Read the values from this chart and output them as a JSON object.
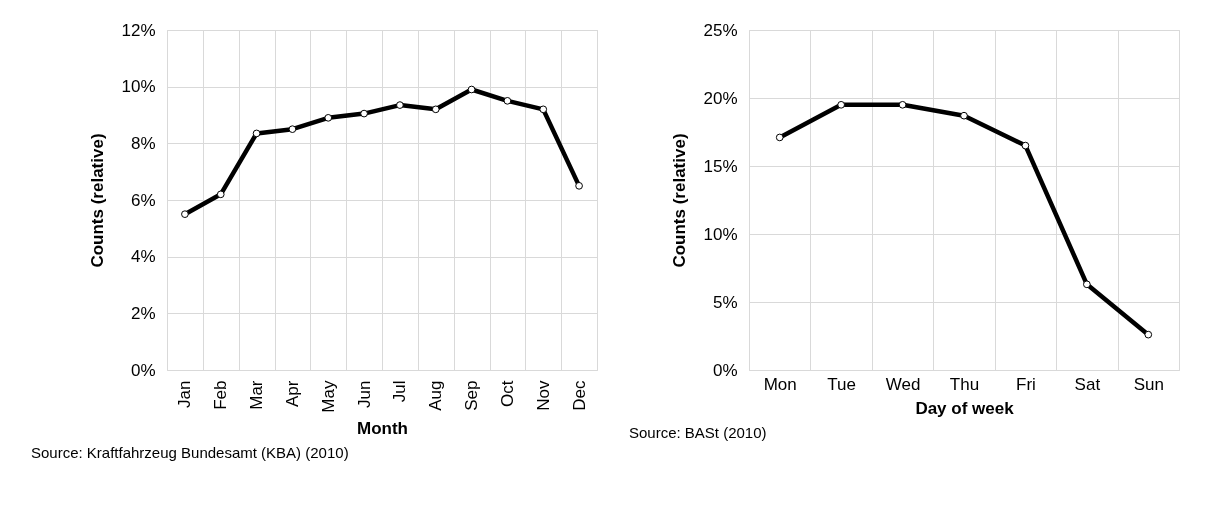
{
  "chart_data": [
    {
      "type": "line",
      "categories": [
        "Jan",
        "Feb",
        "Mar",
        "Apr",
        "May",
        "Jun",
        "Jul",
        "Aug",
        "Sep",
        "Oct",
        "Nov",
        "Dec"
      ],
      "series": [
        {
          "color": "#000000",
          "values": [
            5.5,
            6.2,
            8.35,
            8.5,
            8.9,
            9.05,
            9.35,
            9.2,
            9.9,
            9.5,
            9.2,
            6.5
          ]
        }
      ],
      "xlabel": "Month",
      "ylabel": "Counts (relative)",
      "ylim": [
        0,
        12
      ],
      "yticks": [
        {
          "value": 0,
          "label": "0%"
        },
        {
          "value": 2,
          "label": "2%"
        },
        {
          "value": 4,
          "label": "4%"
        },
        {
          "value": 6,
          "label": "6%"
        },
        {
          "value": 8,
          "label": "8%"
        },
        {
          "value": 10,
          "label": "10%"
        },
        {
          "value": 12,
          "label": "12%"
        }
      ],
      "grid": true,
      "marker": "circle",
      "annotations": [
        "Source: Kraftfahrzeug Bundesamt (KBA) (2010)"
      ]
    },
    {
      "type": "line",
      "categories": [
        "Mon",
        "Tue",
        "Wed",
        "Thu",
        "Fri",
        "Sat",
        "Sun"
      ],
      "series": [
        {
          "color": "#000000",
          "values": [
            17.1,
            19.5,
            19.5,
            18.7,
            16.5,
            6.3,
            2.6
          ]
        }
      ],
      "xlabel": "Day of week",
      "ylabel": "Counts (relative)",
      "ylim": [
        0,
        25
      ],
      "yticks": [
        {
          "value": 0,
          "label": "0%"
        },
        {
          "value": 5,
          "label": "5%"
        },
        {
          "value": 10,
          "label": "10%"
        },
        {
          "value": 15,
          "label": "15%"
        },
        {
          "value": 20,
          "label": "20%"
        },
        {
          "value": 25,
          "label": "25%"
        }
      ],
      "grid": true,
      "marker": "circle",
      "annotations": [
        "Source: BASt (2010)"
      ]
    }
  ]
}
